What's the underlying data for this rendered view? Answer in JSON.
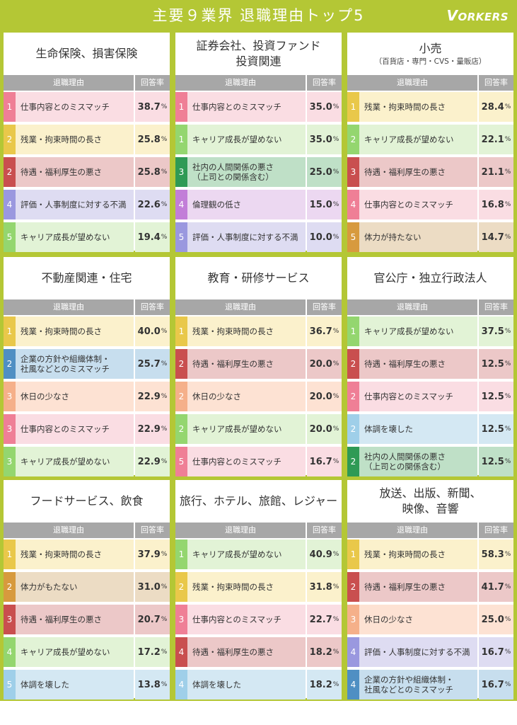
{
  "header": {
    "title": "主要９業界 退職理由トップ5",
    "logo_main": "V",
    "logo_rest": "ORKERS"
  },
  "table_header": {
    "reason": "退職理由",
    "rate": "回答率"
  },
  "unit": "%",
  "colors": {
    "frame": "#b4c735",
    "header_cell": "#a7a7a7",
    "reasons": {
      "仕事内容とのミスマッチ": {
        "rank": "#ef7f96",
        "bg": "#fadde3"
      },
      "残業・拘束時間の長さ": {
        "rank": "#e9c84a",
        "bg": "#fbf1cc"
      },
      "待遇・福利厚生の悪さ": {
        "rank": "#c94f4f",
        "bg": "#ecc8c8"
      },
      "評価・人事制度に対する不満": {
        "rank": "#9a98df",
        "bg": "#dedcf2"
      },
      "キャリア成長が望めない": {
        "rank": "#94d66f",
        "bg": "#e2f3d6"
      },
      "社内の人間関係の悪さ（上司との関係含む）": {
        "rank": "#2f9a55",
        "bg": "#bfe0c7"
      },
      "倫理観の低さ": {
        "rank": "#c27ed8",
        "bg": "#ecd8f1"
      },
      "体力が持たない": {
        "rank": "#d79a3e",
        "bg": "#ecdcc4"
      },
      "企業の方針や組織体制・社風などとのミスマッチ": {
        "rank": "#4f8fc3",
        "bg": "#c7deee"
      },
      "休日の少なさ": {
        "rank": "#f5b08a",
        "bg": "#fde2d3"
      },
      "体調を壊した": {
        "rank": "#9fcfe9",
        "bg": "#d4e8f3"
      }
    }
  },
  "chart_data": [
    {
      "type": "table",
      "title": "生命保険、損害保険",
      "rows": [
        {
          "rank": "1",
          "reason": "仕事内容とのミスマッチ",
          "key": "仕事内容とのミスマッチ",
          "value": 38.7
        },
        {
          "rank": "2",
          "reason": "残業・拘束時間の長さ",
          "key": "残業・拘束時間の長さ",
          "value": 25.8
        },
        {
          "rank": "2",
          "reason": "待遇・福利厚生の悪さ",
          "key": "待遇・福利厚生の悪さ",
          "value": 25.8
        },
        {
          "rank": "4",
          "reason": "評価・人事制度に対する不満",
          "key": "評価・人事制度に対する不満",
          "value": 22.6
        },
        {
          "rank": "5",
          "reason": "キャリア成長が望めない",
          "key": "キャリア成長が望めない",
          "value": 19.4
        }
      ]
    },
    {
      "type": "table",
      "title": "証券会社、投資ファンド\n投資関連",
      "rows": [
        {
          "rank": "1",
          "reason": "仕事内容とのミスマッチ",
          "key": "仕事内容とのミスマッチ",
          "value": 35.0
        },
        {
          "rank": "1",
          "reason": "キャリア成長が望めない",
          "key": "キャリア成長が望めない",
          "value": 35.0
        },
        {
          "rank": "3",
          "reason": "社内の人間関係の悪さ\n（上司との関係含む）",
          "key": "社内の人間関係の悪さ（上司との関係含む）",
          "value": 25.0
        },
        {
          "rank": "4",
          "reason": "倫理観の低さ",
          "key": "倫理観の低さ",
          "value": 15.0
        },
        {
          "rank": "5",
          "reason": "評価・人事制度に対する不満",
          "key": "評価・人事制度に対する不満",
          "value": 10.0
        }
      ]
    },
    {
      "type": "table",
      "title": "小売",
      "subtitle": "（百貨店・専門・CVS・量販店）",
      "rows": [
        {
          "rank": "1",
          "reason": "残業・拘束時間の長さ",
          "key": "残業・拘束時間の長さ",
          "value": 28.4
        },
        {
          "rank": "2",
          "reason": "キャリア成長が望めない",
          "key": "キャリア成長が望めない",
          "value": 22.1
        },
        {
          "rank": "3",
          "reason": "待遇・福利厚生の悪さ",
          "key": "待遇・福利厚生の悪さ",
          "value": 21.1
        },
        {
          "rank": "4",
          "reason": "仕事内容とのミスマッチ",
          "key": "仕事内容とのミスマッチ",
          "value": 16.8
        },
        {
          "rank": "5",
          "reason": "体力が持たない",
          "key": "体力が持たない",
          "value": 14.7
        }
      ]
    },
    {
      "type": "table",
      "title": "不動産関連・住宅",
      "rows": [
        {
          "rank": "1",
          "reason": "残業・拘束時間の長さ",
          "key": "残業・拘束時間の長さ",
          "value": 40.0
        },
        {
          "rank": "2",
          "reason": "企業の方針や組織体制・\n社風などとのミスマッチ",
          "key": "企業の方針や組織体制・社風などとのミスマッチ",
          "value": 25.7
        },
        {
          "rank": "3",
          "reason": "休日の少なさ",
          "key": "休日の少なさ",
          "value": 22.9
        },
        {
          "rank": "3",
          "reason": "仕事内容とのミスマッチ",
          "key": "仕事内容とのミスマッチ",
          "value": 22.9
        },
        {
          "rank": "3",
          "reason": "キャリア成長が望めない",
          "key": "キャリア成長が望めない",
          "value": 22.9
        }
      ]
    },
    {
      "type": "table",
      "title": "教育・研修サービス",
      "rows": [
        {
          "rank": "1",
          "reason": "残業・拘束時間の長さ",
          "key": "残業・拘束時間の長さ",
          "value": 36.7
        },
        {
          "rank": "2",
          "reason": "待遇・福利厚生の悪さ",
          "key": "待遇・福利厚生の悪さ",
          "value": 20.0
        },
        {
          "rank": "2",
          "reason": "休日の少なさ",
          "key": "休日の少なさ",
          "value": 20.0
        },
        {
          "rank": "2",
          "reason": "キャリア成長が望めない",
          "key": "キャリア成長が望めない",
          "value": 20.0
        },
        {
          "rank": "5",
          "reason": "仕事内容とのミスマッチ",
          "key": "仕事内容とのミスマッチ",
          "value": 16.7
        }
      ]
    },
    {
      "type": "table",
      "title": "官公庁・独立行政法人",
      "rows": [
        {
          "rank": "1",
          "reason": "キャリア成長が望めない",
          "key": "キャリア成長が望めない",
          "value": 37.5
        },
        {
          "rank": "2",
          "reason": "待遇・福利厚生の悪さ",
          "key": "待遇・福利厚生の悪さ",
          "value": 12.5
        },
        {
          "rank": "2",
          "reason": "仕事内容とのミスマッチ",
          "key": "仕事内容とのミスマッチ",
          "value": 12.5
        },
        {
          "rank": "2",
          "reason": "体調を壊した",
          "key": "体調を壊した",
          "value": 12.5
        },
        {
          "rank": "2",
          "reason": "社内の人間関係の悪さ\n（上司との関係含む）",
          "key": "社内の人間関係の悪さ（上司との関係含む）",
          "value": 12.5
        }
      ]
    },
    {
      "type": "table",
      "title": "フードサービス、飲食",
      "rows": [
        {
          "rank": "1",
          "reason": "残業・拘束時間の長さ",
          "key": "残業・拘束時間の長さ",
          "value": 37.9
        },
        {
          "rank": "2",
          "reason": "体力がもたない",
          "key": "体力が持たない",
          "value": 31.0
        },
        {
          "rank": "3",
          "reason": "待遇・福利厚生の悪さ",
          "key": "待遇・福利厚生の悪さ",
          "value": 20.7
        },
        {
          "rank": "4",
          "reason": "キャリア成長が望めない",
          "key": "キャリア成長が望めない",
          "value": 17.2
        },
        {
          "rank": "5",
          "reason": "体調を壊した",
          "key": "体調を壊した",
          "value": 13.8
        }
      ]
    },
    {
      "type": "table",
      "title": "旅行、ホテル、旅館、レジャー",
      "rows": [
        {
          "rank": "1",
          "reason": "キャリア成長が望めない",
          "key": "キャリア成長が望めない",
          "value": 40.9
        },
        {
          "rank": "2",
          "reason": "残業・拘束時間の長さ",
          "key": "残業・拘束時間の長さ",
          "value": 31.8
        },
        {
          "rank": "3",
          "reason": "仕事内容とのミスマッチ",
          "key": "仕事内容とのミスマッチ",
          "value": 22.7
        },
        {
          "rank": "4",
          "reason": "待遇・福利厚生の悪さ",
          "key": "待遇・福利厚生の悪さ",
          "value": 18.2
        },
        {
          "rank": "4",
          "reason": "体調を壊した",
          "key": "体調を壊した",
          "value": 18.2
        }
      ]
    },
    {
      "type": "table",
      "title": "放送、出版、新聞、\n映像、音響",
      "rows": [
        {
          "rank": "1",
          "reason": "残業・拘束時間の長さ",
          "key": "残業・拘束時間の長さ",
          "value": 58.3
        },
        {
          "rank": "2",
          "reason": "待遇・福利厚生の悪さ",
          "key": "待遇・福利厚生の悪さ",
          "value": 41.7
        },
        {
          "rank": "3",
          "reason": "休日の少なさ",
          "key": "休日の少なさ",
          "value": 25.0
        },
        {
          "rank": "4",
          "reason": "評価・人事制度に対する不満",
          "key": "評価・人事制度に対する不満",
          "value": 16.7
        },
        {
          "rank": "4",
          "reason": "企業の方針や組織体制・\n社風などとのミスマッチ",
          "key": "企業の方針や組織体制・社風などとのミスマッチ",
          "value": 16.7
        }
      ]
    }
  ]
}
